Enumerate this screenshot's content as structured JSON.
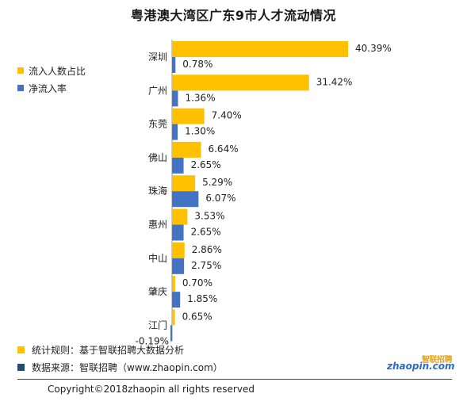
{
  "chart_data": {
    "type": "bar",
    "orientation": "horizontal",
    "title": "粤港澳大湾区广东9市人才流动情况",
    "categories": [
      "深圳",
      "广州",
      "东莞",
      "佛山",
      "珠海",
      "惠州",
      "中山",
      "肇庆",
      "江门"
    ],
    "series": [
      {
        "name": "流入人数占比",
        "color": "#FFC000",
        "values": [
          40.39,
          31.42,
          7.4,
          6.64,
          5.29,
          3.53,
          2.86,
          0.7,
          0.65
        ],
        "labels": [
          "40.39%",
          "31.42%",
          "7.40%",
          "6.64%",
          "5.29%",
          "3.53%",
          "2.86%",
          "0.70%",
          "0.65%"
        ]
      },
      {
        "name": "净流入率",
        "color": "#4472C4",
        "values": [
          0.78,
          1.36,
          1.3,
          2.65,
          6.07,
          2.65,
          2.75,
          1.85,
          -0.19
        ],
        "labels": [
          "0.78%",
          "1.36%",
          "1.30%",
          "2.65%",
          "6.07%",
          "2.65%",
          "2.75%",
          "1.85%",
          "-0.19%"
        ]
      }
    ],
    "xlim": [
      -0.5,
      41
    ],
    "grid": false,
    "legend_position": "left"
  },
  "notes": [
    {
      "text": "统计规则：基于智联招聘大数据分析",
      "color": "#FFC000"
    },
    {
      "text": "数据来源：智联招聘（www.zhaopin.com）",
      "color": "#1F4E79"
    }
  ],
  "copyright": "Copyright©2018zhaopin all rights reserved",
  "logo": {
    "top": "智联招聘",
    "bottom": "zhaopin.com"
  }
}
